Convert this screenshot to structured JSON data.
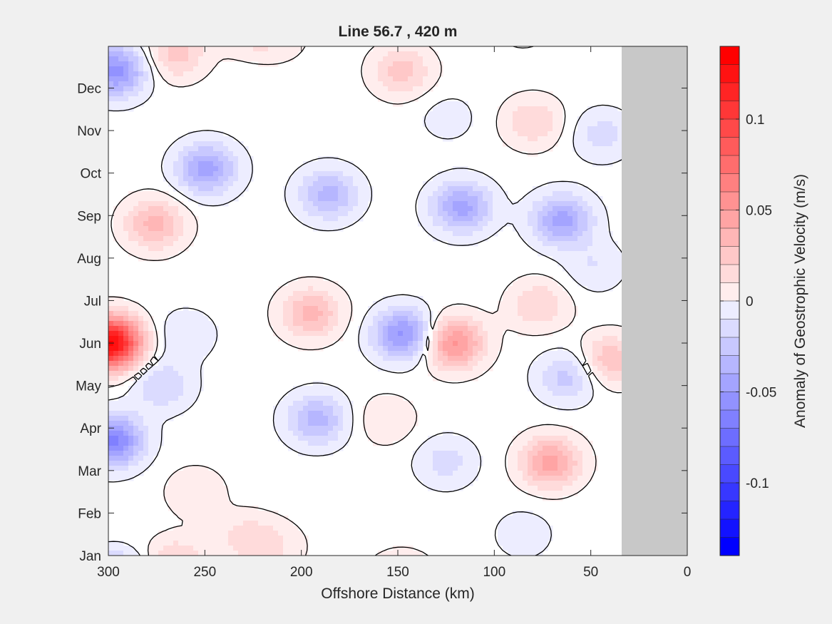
{
  "chart_data": {
    "type": "heatmap",
    "title": "Line 56.7 , 420 m",
    "xlabel": "Offshore Distance (km)",
    "ylabel": "",
    "colorbar_label": "Anomaly of Geostrophic Velocity (m/s)",
    "xlim": [
      300,
      0
    ],
    "x_reversed": true,
    "xticks": [
      300,
      250,
      200,
      150,
      100,
      50,
      0
    ],
    "ylim": [
      "Jan",
      "Dec"
    ],
    "yticks": [
      "Jan",
      "Feb",
      "Mar",
      "Apr",
      "May",
      "Jun",
      "Jul",
      "Aug",
      "Sep",
      "Oct",
      "Nov",
      "Dec"
    ],
    "clim": [
      -0.14,
      0.14
    ],
    "colorbar_ticks": [
      -0.1,
      -0.05,
      0,
      0.05,
      0.1
    ],
    "colorbar_tick_labels": [
      "-0.1",
      "-0.05",
      "0",
      "0.05",
      "0.1"
    ],
    "contour_step": 0.01,
    "zero_contour_color": "#000000",
    "no_data_x_range_km": [
      0,
      34
    ],
    "no_data_color": "#c8c8c8",
    "colormap": {
      "negative": "#0000ff",
      "zero": "#ffffff",
      "positive": "#ff0000"
    },
    "features": [
      {
        "x_km": 299,
        "month": 6.0,
        "value": 0.14
      },
      {
        "x_km": 276,
        "month": 8.8,
        "value": 0.04
      },
      {
        "x_km": 298,
        "month": 3.7,
        "value": -0.07
      },
      {
        "x_km": 296,
        "month": 12.4,
        "value": -0.06
      },
      {
        "x_km": 249,
        "month": 10.1,
        "value": -0.05
      },
      {
        "x_km": 186,
        "month": 9.5,
        "value": -0.04
      },
      {
        "x_km": 195,
        "month": 6.7,
        "value": 0.04
      },
      {
        "x_km": 147,
        "month": 6.2,
        "value": -0.06
      },
      {
        "x_km": 121,
        "month": 6.0,
        "value": 0.06
      },
      {
        "x_km": 117,
        "month": 9.2,
        "value": -0.05
      },
      {
        "x_km": 65,
        "month": 8.9,
        "value": -0.05
      },
      {
        "x_km": 192,
        "month": 4.2,
        "value": -0.04
      },
      {
        "x_km": 71,
        "month": 3.2,
        "value": 0.05
      },
      {
        "x_km": 148,
        "month": 12.4,
        "value": 0.03
      },
      {
        "x_km": 265,
        "month": 12.8,
        "value": 0.03
      },
      {
        "x_km": 80,
        "month": 11.2,
        "value": 0.025
      },
      {
        "x_km": 40,
        "month": 5.6,
        "value": 0.035
      },
      {
        "x_km": 62,
        "month": 5.2,
        "value": -0.03
      },
      {
        "x_km": 77,
        "month": 6.9,
        "value": 0.025
      },
      {
        "x_km": 125,
        "month": 3.2,
        "value": -0.02
      },
      {
        "x_km": 156,
        "month": 4.2,
        "value": 0.015
      },
      {
        "x_km": 255,
        "month": 2.5,
        "value": 0.015
      },
      {
        "x_km": 228,
        "month": 1.4,
        "value": 0.02
      },
      {
        "x_km": 44,
        "month": 10.9,
        "value": -0.02
      },
      {
        "x_km": 260,
        "month": 6.2,
        "value": -0.015
      },
      {
        "x_km": 272,
        "month": 5.0,
        "value": -0.025
      },
      {
        "x_km": 85,
        "month": 1.5,
        "value": -0.012
      },
      {
        "x_km": 124,
        "month": 11.3,
        "value": -0.01
      },
      {
        "x_km": 212,
        "month": 1.2,
        "value": 0.012
      },
      {
        "x_km": 48,
        "month": 7.8,
        "value": -0.015
      }
    ]
  }
}
